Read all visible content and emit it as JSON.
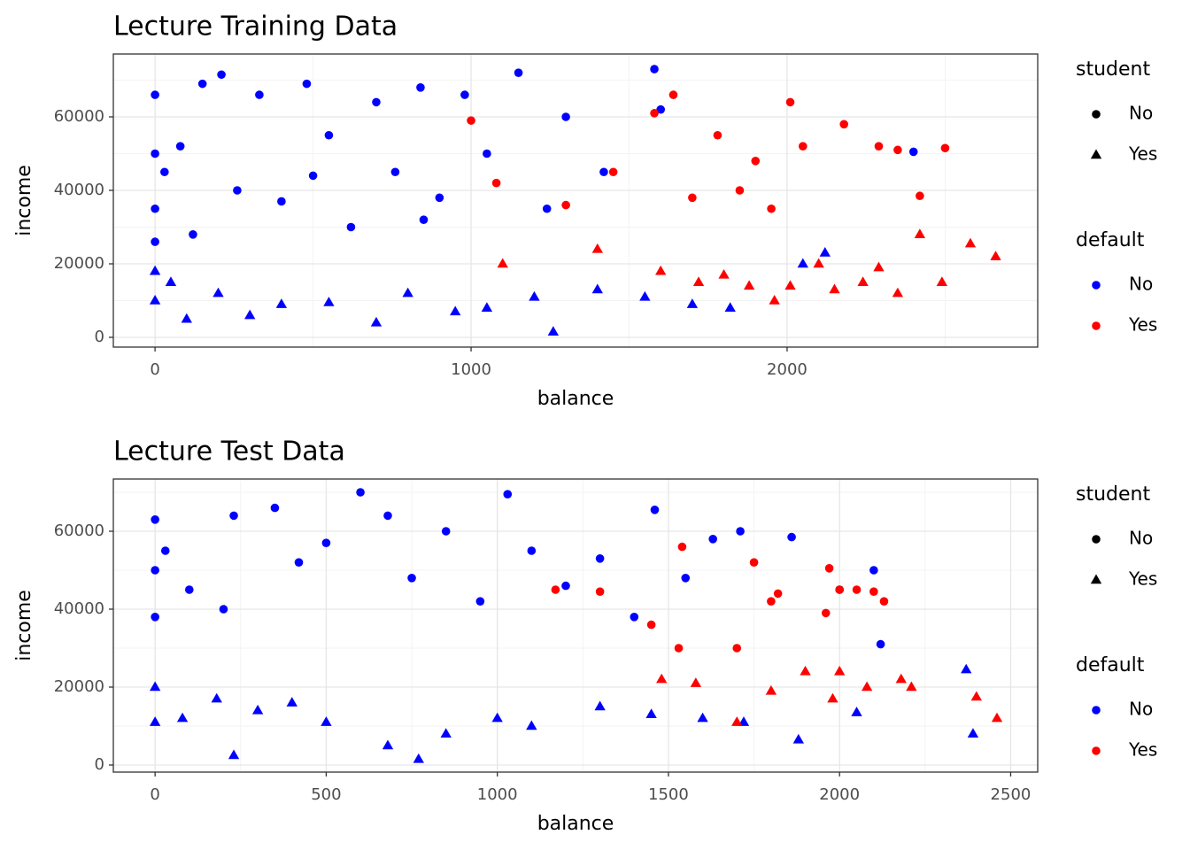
{
  "chart_data": [
    {
      "type": "scatter",
      "title": "Lecture Training Data",
      "x_label": "balance",
      "y_label": "income",
      "xlim": [
        -132,
        2793
      ],
      "ylim": [
        -2651,
        77108
      ],
      "xticks": [
        0,
        1000,
        2000
      ],
      "yticks": [
        0,
        20000,
        40000,
        60000
      ],
      "grid": true,
      "legends": [
        {
          "title": "student",
          "entries": [
            {
              "label": "No",
              "shape": "circle",
              "color": "#000000"
            },
            {
              "label": "Yes",
              "shape": "triangle",
              "color": "#000000"
            }
          ]
        },
        {
          "title": "default",
          "entries": [
            {
              "label": "No",
              "shape": "circle",
              "color": "#0000ff"
            },
            {
              "label": "Yes",
              "shape": "circle",
              "color": "#ff0000"
            }
          ]
        }
      ],
      "series": [
        {
          "shape": "circle",
          "color": "#0000ff",
          "x": [
            0,
            0,
            0,
            30,
            80,
            150,
            210,
            260,
            330,
            400,
            480,
            550,
            620,
            700,
            760,
            840,
            900,
            980,
            1050,
            1150,
            1240,
            1300,
            1420,
            1580,
            2400,
            0,
            120,
            500,
            850,
            1600
          ],
          "y": [
            66000,
            50000,
            35000,
            45000,
            52000,
            69000,
            71500,
            40000,
            66000,
            37000,
            69000,
            55000,
            30000,
            64000,
            45000,
            68000,
            38000,
            66000,
            50000,
            72000,
            35000,
            60000,
            45000,
            73000,
            50500,
            26000,
            28000,
            44000,
            32000,
            62000
          ]
        },
        {
          "shape": "triangle",
          "color": "#0000ff",
          "x": [
            0,
            0,
            50,
            100,
            200,
            300,
            400,
            550,
            700,
            800,
            950,
            1050,
            1200,
            1260,
            1400,
            1550,
            1700,
            1820,
            2050,
            2120
          ],
          "y": [
            10000,
            18000,
            15000,
            5000,
            12000,
            6000,
            9000,
            9500,
            4000,
            12000,
            7000,
            8000,
            11000,
            1500,
            13000,
            11000,
            9000,
            8000,
            20000,
            23000
          ]
        },
        {
          "shape": "circle",
          "color": "#ff0000",
          "x": [
            1000,
            1080,
            1300,
            1450,
            1580,
            1640,
            1700,
            1780,
            1850,
            1900,
            1950,
            2010,
            2050,
            2180,
            2290,
            2350,
            2420,
            2500
          ],
          "y": [
            59000,
            42000,
            36000,
            45000,
            61000,
            66000,
            38000,
            55000,
            40000,
            48000,
            35000,
            64000,
            52000,
            58000,
            52000,
            51000,
            38500,
            51500
          ]
        },
        {
          "shape": "triangle",
          "color": "#ff0000",
          "x": [
            1100,
            1400,
            1600,
            1720,
            1800,
            1880,
            1960,
            2010,
            2100,
            2150,
            2240,
            2290,
            2350,
            2420,
            2490,
            2580,
            2660
          ],
          "y": [
            20000,
            24000,
            18000,
            15000,
            17000,
            14000,
            10000,
            14000,
            20000,
            13000,
            15000,
            19000,
            12000,
            28000,
            15000,
            25500,
            22000
          ]
        }
      ]
    },
    {
      "type": "scatter",
      "title": "Lecture Test Data",
      "x_label": "balance",
      "y_label": "income",
      "xlim": [
        -122,
        2579
      ],
      "ylim": [
        -1818,
        73409
      ],
      "xticks": [
        0,
        500,
        1000,
        1500,
        2000,
        2500
      ],
      "yticks": [
        0,
        20000,
        40000,
        60000
      ],
      "grid": true,
      "legends": [
        {
          "title": "student",
          "entries": [
            {
              "label": "No",
              "shape": "circle",
              "color": "#000000"
            },
            {
              "label": "Yes",
              "shape": "triangle",
              "color": "#000000"
            }
          ]
        },
        {
          "title": "default",
          "entries": [
            {
              "label": "No",
              "shape": "circle",
              "color": "#0000ff"
            },
            {
              "label": "Yes",
              "shape": "circle",
              "color": "#ff0000"
            }
          ]
        }
      ],
      "series": [
        {
          "shape": "circle",
          "color": "#0000ff",
          "x": [
            0,
            0,
            0,
            30,
            100,
            200,
            230,
            350,
            420,
            500,
            600,
            680,
            750,
            850,
            950,
            1030,
            1100,
            1200,
            1300,
            1400,
            1460,
            1550,
            1630,
            1710,
            1860,
            2000,
            2100,
            2120
          ],
          "y": [
            63000,
            50000,
            38000,
            55000,
            45000,
            40000,
            64000,
            66000,
            52000,
            57000,
            70000,
            64000,
            48000,
            60000,
            42000,
            69500,
            55000,
            46000,
            53000,
            38000,
            65500,
            48000,
            58000,
            60000,
            58500,
            45000,
            50000,
            31000
          ]
        },
        {
          "shape": "triangle",
          "color": "#0000ff",
          "x": [
            0,
            0,
            80,
            180,
            230,
            300,
            400,
            500,
            680,
            770,
            850,
            1000,
            1100,
            1300,
            1450,
            1600,
            1720,
            1880,
            2050,
            2370,
            2390
          ],
          "y": [
            11000,
            20000,
            12000,
            17000,
            2500,
            14000,
            16000,
            11000,
            5000,
            1500,
            8000,
            12000,
            10000,
            15000,
            13000,
            12000,
            11000,
            6500,
            13500,
            24500,
            8000
          ]
        },
        {
          "shape": "circle",
          "color": "#ff0000",
          "x": [
            1170,
            1300,
            1450,
            1530,
            1540,
            1700,
            1750,
            1800,
            1820,
            1960,
            1970,
            2000,
            2050,
            2100,
            2130
          ],
          "y": [
            45000,
            44500,
            36000,
            30000,
            56000,
            30000,
            52000,
            42000,
            44000,
            39000,
            50500,
            45000,
            45000,
            44500,
            42000
          ]
        },
        {
          "shape": "triangle",
          "color": "#ff0000",
          "x": [
            1480,
            1580,
            1700,
            1800,
            1900,
            1980,
            2000,
            2080,
            2180,
            2210,
            2400,
            2460
          ],
          "y": [
            22000,
            21000,
            11000,
            19000,
            24000,
            17000,
            24000,
            20000,
            22000,
            20000,
            17500,
            12000
          ]
        }
      ]
    }
  ]
}
